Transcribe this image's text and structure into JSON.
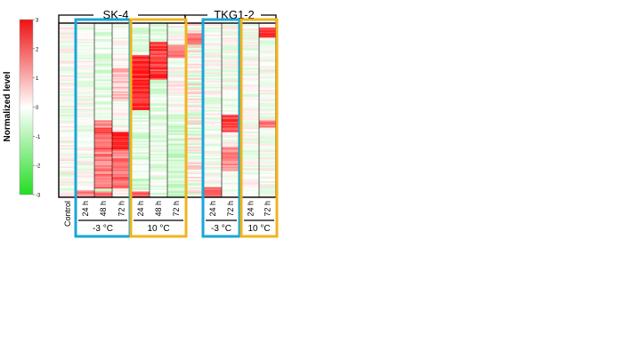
{
  "chart_data": {
    "type": "heatmap",
    "title": "",
    "colorbar": {
      "label": "Normalized level",
      "range": [
        -3,
        3
      ],
      "ticks": [
        3,
        2,
        1,
        0,
        -1,
        -2,
        -3
      ],
      "low_color": "#22dd22",
      "mid_color": "#ffffff",
      "high_color": "#ee1111"
    },
    "strains": [
      {
        "label": "SK-4"
      },
      {
        "label": "TKG1-2"
      }
    ],
    "columns": [
      {
        "label": "Control",
        "strain": "SK-4",
        "condition": "",
        "profile": "control"
      },
      {
        "label": "24 h",
        "strain": "SK-4",
        "condition": "-3 °C",
        "profile": "cold_early"
      },
      {
        "label": "48 h",
        "strain": "SK-4",
        "condition": "-3 °C",
        "profile": "cold_mid"
      },
      {
        "label": "72 h",
        "strain": "SK-4",
        "condition": "-3 °C",
        "profile": "cold_late"
      },
      {
        "label": "24 h",
        "strain": "SK-4",
        "condition": "10 °C",
        "profile": "warm_early"
      },
      {
        "label": "48 h",
        "strain": "SK-4",
        "condition": "10 °C",
        "profile": "warm_mid"
      },
      {
        "label": "72 h",
        "strain": "SK-4",
        "condition": "10 °C",
        "profile": "warm_late"
      },
      {
        "label": "",
        "strain": "TKG1-2",
        "condition": "",
        "profile": "control2"
      },
      {
        "label": "24 h",
        "strain": "TKG1-2",
        "condition": "-3 °C",
        "profile": "cold2_early"
      },
      {
        "label": "72 h",
        "strain": "TKG1-2",
        "condition": "-3 °C",
        "profile": "cold2_late"
      },
      {
        "label": "24 h",
        "strain": "TKG1-2",
        "condition": "10 °C",
        "profile": "warm2_early"
      },
      {
        "label": "72 h",
        "strain": "TKG1-2",
        "condition": "10 °C",
        "profile": "warm2_late"
      }
    ],
    "condition_groups": [
      {
        "label": "-3 °C",
        "strain": "SK-4",
        "columns": [
          1,
          2,
          3
        ],
        "color": "#1aa6d8"
      },
      {
        "label": "10 °C",
        "strain": "SK-4",
        "columns": [
          4,
          5,
          6
        ],
        "color": "#f0b41e"
      },
      {
        "label": "-3 °C",
        "strain": "TKG1-2",
        "columns": [
          8,
          9
        ],
        "color": "#1aa6d8"
      },
      {
        "label": "10 °C",
        "strain": "TKG1-2",
        "columns": [
          10,
          11
        ],
        "color": "#f0b41e"
      }
    ],
    "rows_sampled": 120
  }
}
